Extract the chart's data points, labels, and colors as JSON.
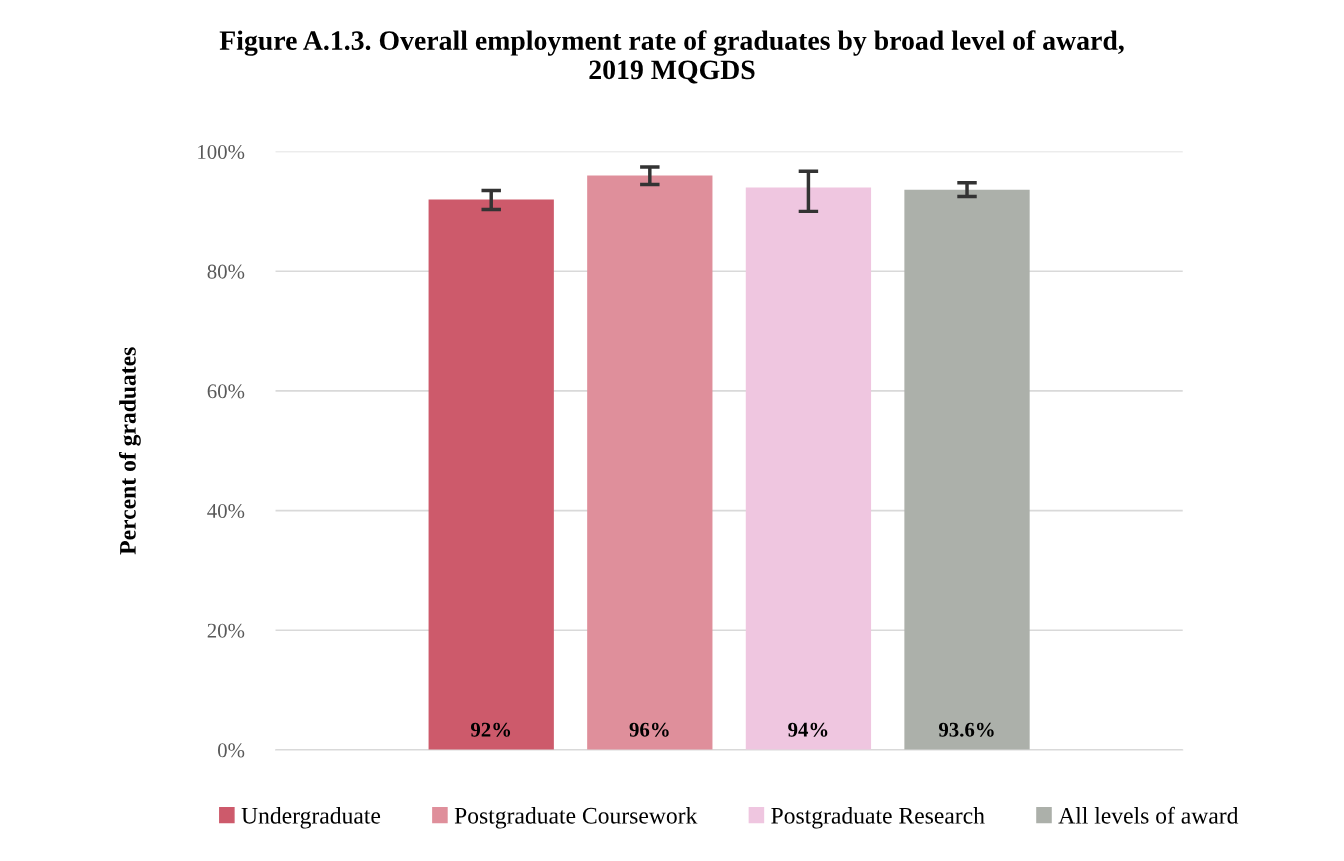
{
  "chart_data": {
    "type": "bar",
    "title": "Figure A.1.3. Overall employment rate of graduates by broad level of award,\n2019 MQGDS",
    "ylabel": "Percent of graduates",
    "categories": [
      null
    ],
    "series": [
      {
        "name": "Undergraduate",
        "color": "#cd5a6b",
        "values": [
          92
        ],
        "errors": [
          [
            90.3,
            93.5
          ]
        ],
        "value_labels": [
          "92%"
        ]
      },
      {
        "name": "Postgraduate Coursework",
        "color": "#df8f9b",
        "values": [
          96
        ],
        "errors": [
          [
            94.5,
            97.4
          ]
        ],
        "value_labels": [
          "96%"
        ]
      },
      {
        "name": "Postgraduate Research",
        "color": "#efc6e0",
        "values": [
          94
        ],
        "errors": [
          [
            90.0,
            96.7
          ]
        ],
        "value_labels": [
          "94%"
        ]
      },
      {
        "name": "All levels of award",
        "color": "#acb0aa",
        "values": [
          93.6
        ],
        "errors": [
          [
            92.5,
            94.8
          ]
        ],
        "value_labels": [
          "93.6%"
        ]
      }
    ],
    "ylim": [
      0,
      100
    ],
    "yticks": [
      {
        "value": 0,
        "label": "0%"
      },
      {
        "value": 20,
        "label": "20%"
      },
      {
        "value": 40,
        "label": "40%"
      },
      {
        "value": 60,
        "label": "60%"
      },
      {
        "value": 80,
        "label": "80%"
      },
      {
        "value": 100,
        "label": "100%"
      }
    ],
    "grid": "y",
    "legend": "bottom"
  }
}
